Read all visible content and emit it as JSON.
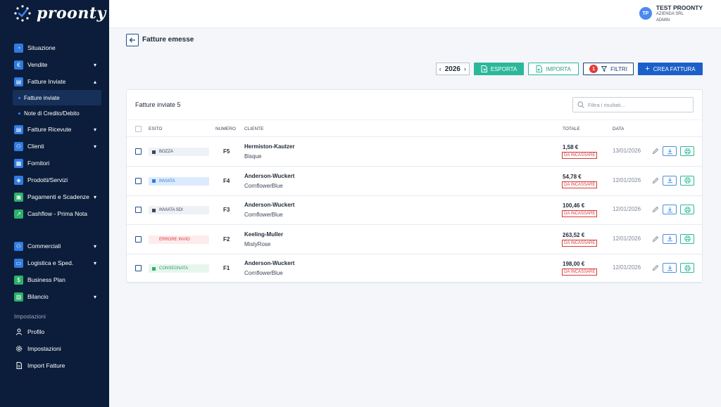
{
  "brand": {
    "name": "proonty"
  },
  "user": {
    "initials": "TP",
    "name": "TEST PROONTY",
    "company": "AZIENDA SRL",
    "role": "ADMIN"
  },
  "sidebar": {
    "items": [
      {
        "label": "Situazione",
        "icon": "speedometer-icon",
        "color": "#2f7be0",
        "chevron": ""
      },
      {
        "label": "Vendite",
        "icon": "euro-icon",
        "color": "#2f7be0",
        "chevron": "▾"
      },
      {
        "label": "Fatture Inviate",
        "icon": "document-icon",
        "color": "#2f7be0",
        "chevron": "▴"
      },
      {
        "label": "Fatture inviate",
        "sub": true,
        "active": true
      },
      {
        "label": "Note di Credito/Debito",
        "sub": true
      },
      {
        "label": "Fatture Ricevute",
        "icon": "document-icon",
        "color": "#2f7be0",
        "chevron": "▾"
      },
      {
        "label": "Clienti",
        "icon": "users-icon",
        "color": "#2f7be0",
        "chevron": "▾"
      },
      {
        "label": "Fornitori",
        "icon": "building-icon",
        "color": "#2f7be0",
        "chevron": ""
      },
      {
        "label": "Prodotti/Servizi",
        "icon": "box-icon",
        "color": "#2f7be0",
        "chevron": ""
      },
      {
        "label": "Pagamenti e Scadenze",
        "icon": "calendar-icon",
        "color": "#2bb06a",
        "chevron": "▾"
      },
      {
        "label": "Cashflow - Prima Nota",
        "icon": "trend-icon",
        "color": "#2bb06a",
        "chevron": ""
      }
    ],
    "items2": [
      {
        "label": "Commerciali",
        "icon": "people-icon",
        "color": "#2f7be0",
        "chevron": "▾"
      },
      {
        "label": "Logistica e Sped.",
        "icon": "truck-icon",
        "color": "#2f7be0",
        "chevron": "▾"
      },
      {
        "label": "Business Plan",
        "icon": "dollar-icon",
        "color": "#2bb06a",
        "chevron": ""
      },
      {
        "label": "Bilancio",
        "icon": "clipboard-icon",
        "color": "#2bb06a",
        "chevron": "▾"
      }
    ],
    "settings_title": "Impostazioni",
    "settings_items": [
      {
        "label": "Profilo",
        "icon": "user-icon"
      },
      {
        "label": "Impostazioni",
        "icon": "gear-icon"
      },
      {
        "label": "Import Fatture",
        "icon": "file-import-icon"
      }
    ]
  },
  "page": {
    "title": "Fatture emesse"
  },
  "toolbar": {
    "year": "2026",
    "prev": "‹",
    "next": "›",
    "export_label": "ESPORTA",
    "import_label": "IMPORTA",
    "filter_count": "1",
    "filter_label": "FILTRI",
    "create_label": "CREA FATTURA",
    "colors": {
      "export": "#2bb89a",
      "create": "#1d5fc8",
      "filter_badge": "#e23b3b"
    }
  },
  "table": {
    "title": "Fatture inviate",
    "count": "5",
    "search_placeholder": "Filtra i risultati...",
    "headers": {
      "esito": "ESITO",
      "numero": "NUMERO",
      "cliente": "CLIENTE",
      "totale": "TOTALE",
      "data": "DATA"
    },
    "rows": [
      {
        "status": "BOZZA",
        "status_bg": "#eef1f5",
        "status_color": "#3a4658",
        "status_sq": "#3a4658",
        "numero": "F5",
        "cliente": "Hermiston-Kautzer",
        "sub": "Bisque",
        "totale": "1,58 €",
        "tag": "DA INCASSARE",
        "data": "13/01/2026"
      },
      {
        "status": "INVIATA",
        "status_bg": "#dcebfb",
        "status_color": "#2f7be0",
        "status_sq": "#2f7be0",
        "numero": "F4",
        "cliente": "Anderson-Wuckert",
        "sub": "CornflowerBlue",
        "totale": "54,78 €",
        "tag": "DA INCASSARE",
        "data": "12/01/2026"
      },
      {
        "status": "INVIATA SDI",
        "status_bg": "#eef1f5",
        "status_color": "#3a4658",
        "status_sq": "#3a4658",
        "numero": "F3",
        "cliente": "Anderson-Wuckert",
        "sub": "CornflowerBlue",
        "totale": "100,46 €",
        "tag": "DA INCASSARE",
        "data": "12/01/2026"
      },
      {
        "status": "ERRORE INVIO",
        "status_bg": "#fdecec",
        "status_color": "#d63a3a",
        "status_sq": "#fdecec",
        "numero": "F2",
        "cliente": "Keeling-Muller",
        "sub": "MistyRose",
        "totale": "263,52 €",
        "tag": "DA INCASSARE",
        "data": "12/01/2026"
      },
      {
        "status": "CONSEGNATA",
        "status_bg": "#e6f6ee",
        "status_color": "#2b9e62",
        "status_sq": "#2bb06a",
        "numero": "F1",
        "cliente": "Anderson-Wuckert",
        "sub": "CornflowerBlue",
        "totale": "198,00 €",
        "tag": "DA INCASSARE",
        "data": "12/01/2026"
      }
    ]
  }
}
